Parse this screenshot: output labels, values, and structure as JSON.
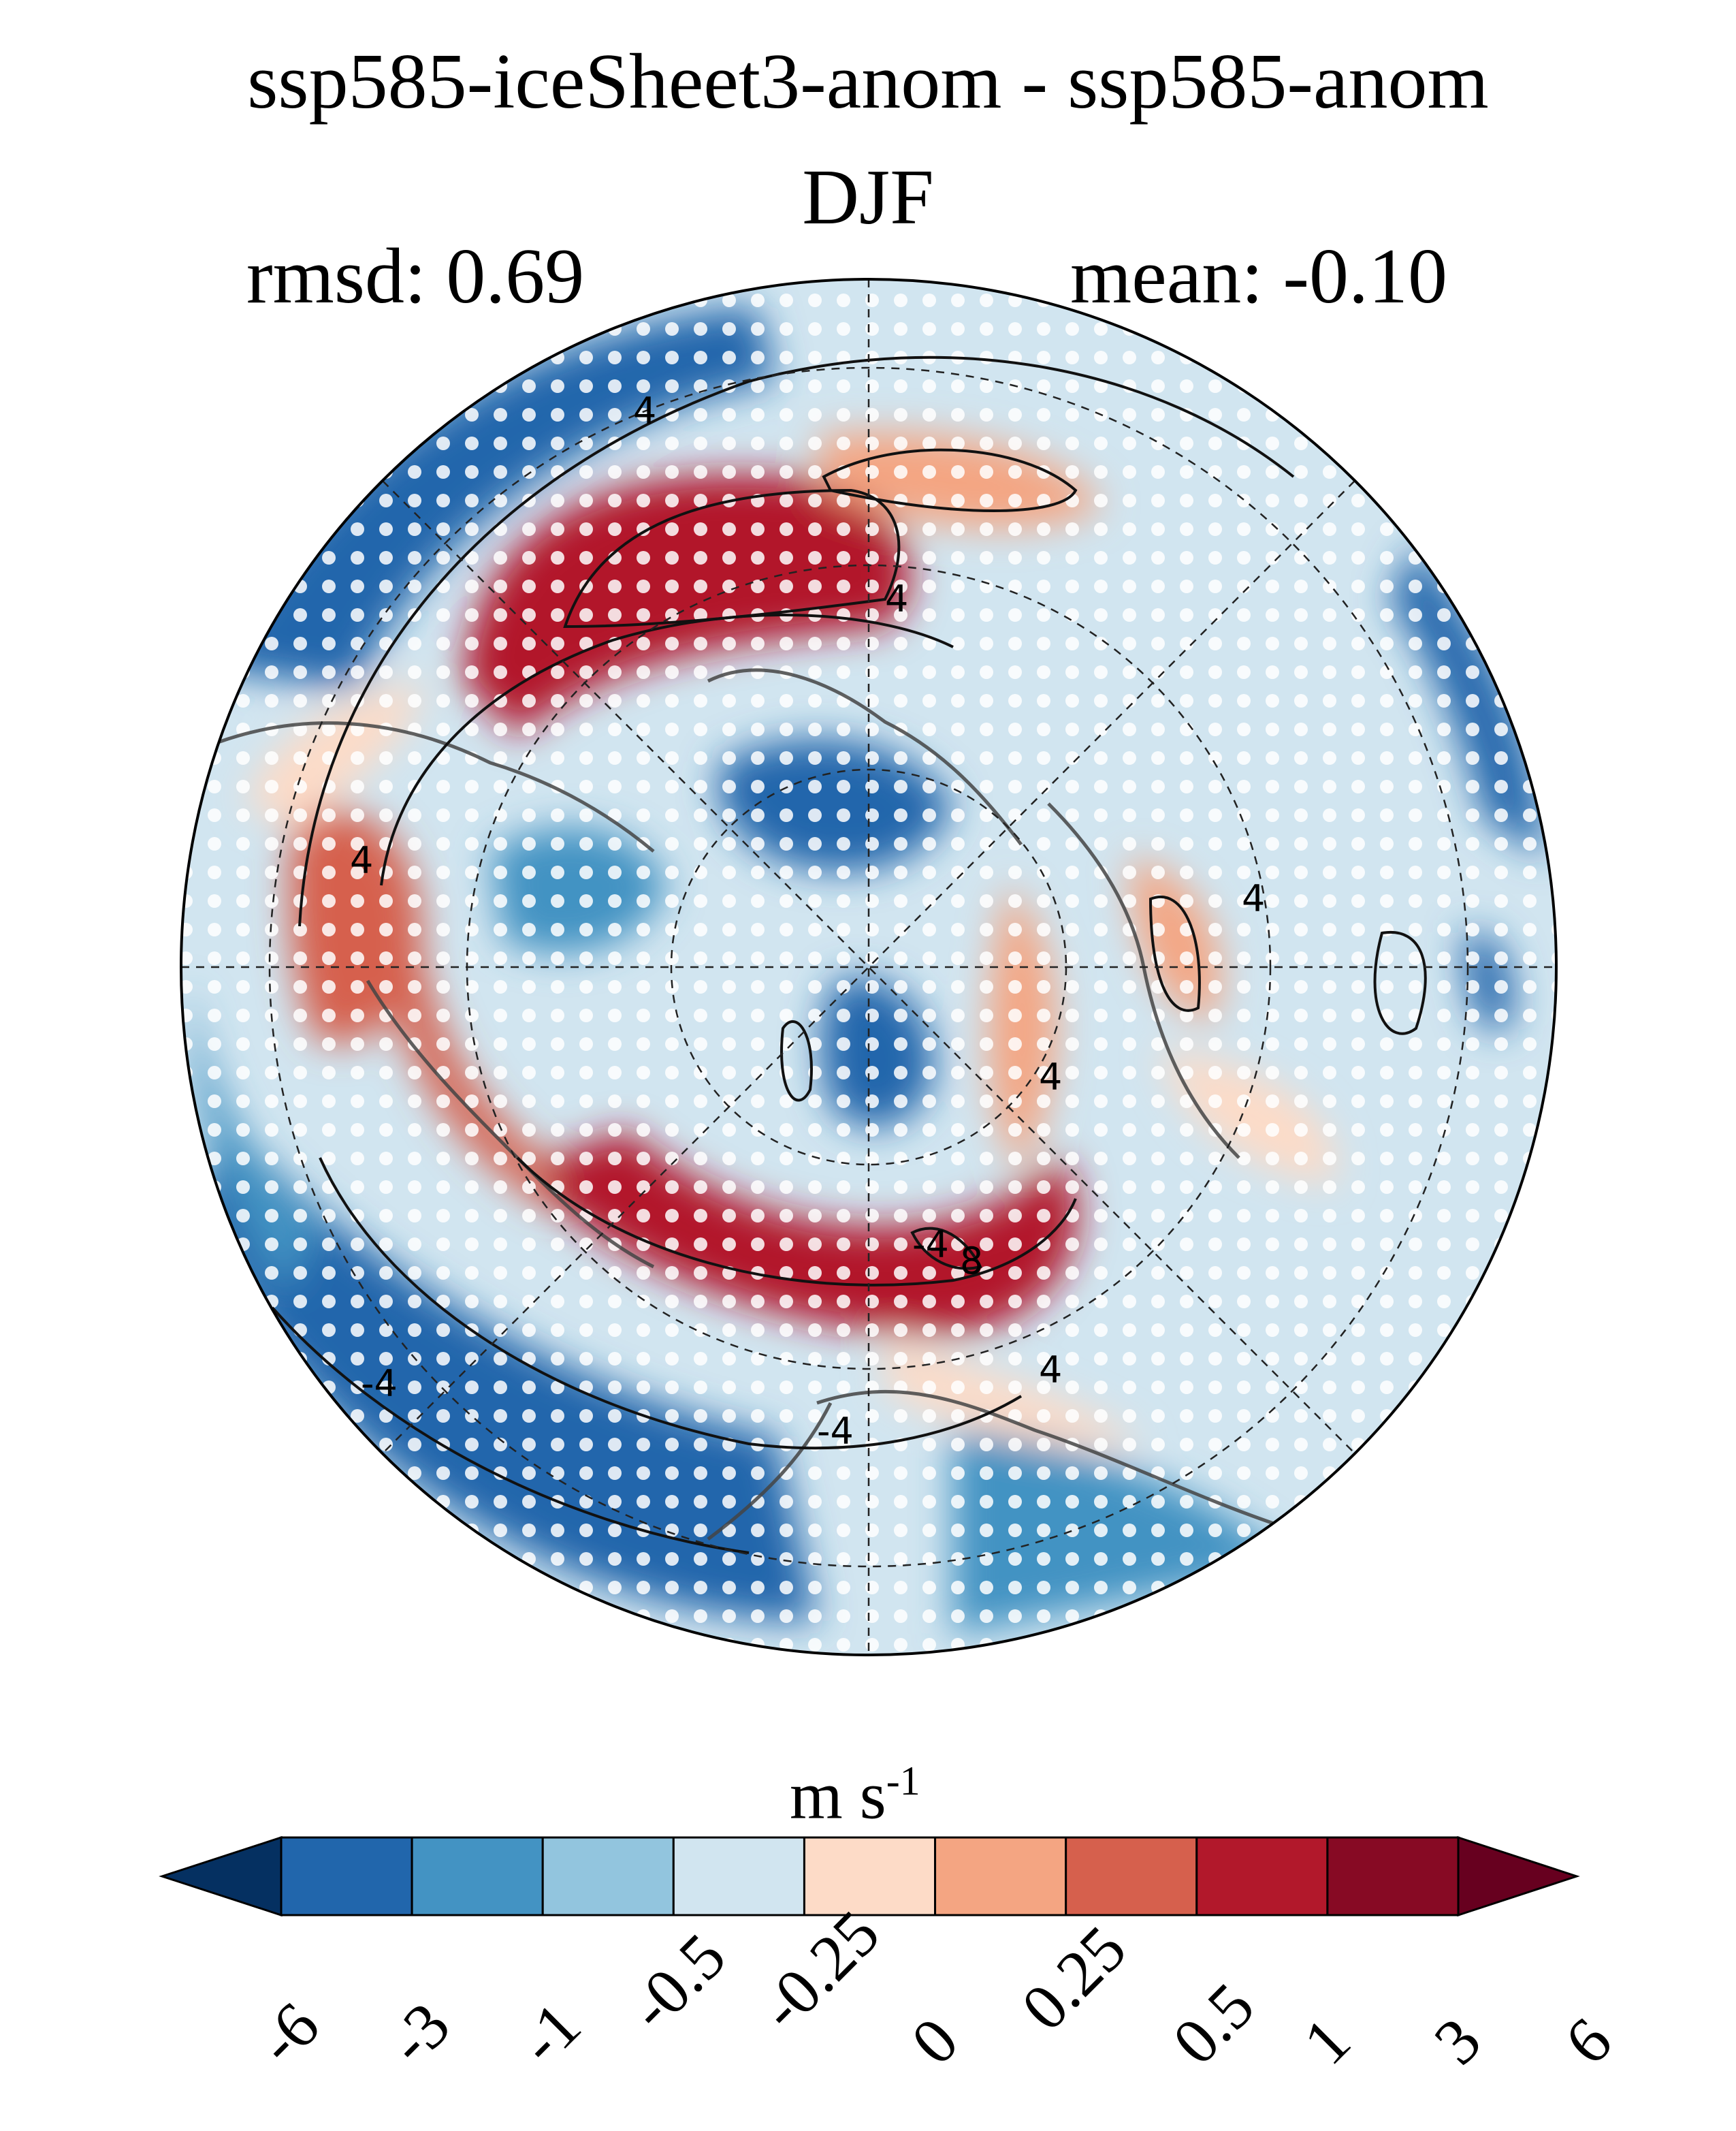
{
  "title": "ssp585-iceSheet3-anom - ssp585-anom",
  "season": "DJF",
  "stats": {
    "rmsd": "rmsd: 0.69",
    "mean": "mean: -0.10"
  },
  "map": {
    "projection": "north-polar-stereographic",
    "stippling": "white dots mark significance",
    "contour_labels": [
      "4",
      "4",
      "4",
      "4",
      "4",
      "4",
      "-4",
      "-4",
      "-4",
      "8"
    ]
  },
  "colorbar": {
    "units_base": "m s",
    "units_exp": "-1",
    "levels": [
      "-6",
      "-3",
      "-1",
      "-0.5",
      "-0.25",
      "0",
      "0.25",
      "0.5",
      "1",
      "3",
      "6"
    ],
    "colors": [
      "#053061",
      "#2166ac",
      "#4393c3",
      "#92c5de",
      "#d1e5f0",
      "#fddbc7",
      "#f4a582",
      "#d6604d",
      "#b2182b",
      "#870a24",
      "#67001f"
    ]
  }
}
